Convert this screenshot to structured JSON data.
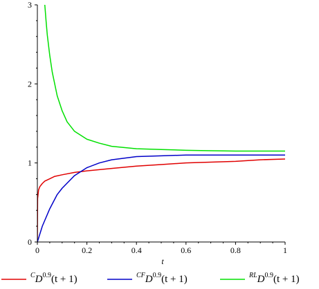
{
  "chart_data": {
    "type": "line",
    "xlabel": "t",
    "ylabel": "",
    "xlim": [
      0,
      1
    ],
    "ylim": [
      0,
      3
    ],
    "x_ticks": [
      {
        "value": 0,
        "label": "0"
      },
      {
        "value": 0.2,
        "label": "0.2"
      },
      {
        "value": 0.4,
        "label": "0.4"
      },
      {
        "value": 0.6,
        "label": "0.6"
      },
      {
        "value": 0.8,
        "label": "0.8"
      },
      {
        "value": 1,
        "label": "1"
      }
    ],
    "y_ticks": [
      {
        "value": 0,
        "label": "0"
      },
      {
        "value": 1,
        "label": "1"
      },
      {
        "value": 2,
        "label": "2"
      },
      {
        "value": 3,
        "label": "3"
      }
    ],
    "grid": false,
    "legend_position": "bottom",
    "series": [
      {
        "name": "^C D^0.9(t+1)",
        "legend_parts": {
          "sup": "C",
          "base": "D",
          "exp": "0.9",
          "arg": "(t + 1)"
        },
        "color": "#e00000",
        "x": [
          0,
          0.001,
          0.005,
          0.01,
          0.02,
          0.03,
          0.05,
          0.07,
          0.1,
          0.15,
          0.2,
          0.3,
          0.4,
          0.5,
          0.6,
          0.7,
          0.8,
          0.9,
          1.0
        ],
        "y": [
          0,
          0.55,
          0.66,
          0.7,
          0.74,
          0.77,
          0.8,
          0.83,
          0.85,
          0.88,
          0.9,
          0.93,
          0.96,
          0.98,
          1.0,
          1.01,
          1.02,
          1.04,
          1.05
        ]
      },
      {
        "name": "^CF D^0.9(t+1)",
        "legend_parts": {
          "sup": "CF",
          "base": "D",
          "exp": "0.9",
          "arg": "(t + 1)"
        },
        "color": "#0000c8",
        "x": [
          0,
          0.02,
          0.05,
          0.08,
          0.1,
          0.15,
          0.2,
          0.25,
          0.3,
          0.4,
          0.5,
          0.6,
          0.7,
          0.8,
          0.9,
          1.0
        ],
        "y": [
          0,
          0.2,
          0.42,
          0.6,
          0.68,
          0.84,
          0.94,
          1.0,
          1.04,
          1.08,
          1.09,
          1.1,
          1.1,
          1.1,
          1.1,
          1.1
        ]
      },
      {
        "name": "^RL D^0.9(t+1)",
        "legend_parts": {
          "sup": "RL",
          "base": "D",
          "exp": "0.9",
          "arg": "(t + 1)"
        },
        "color": "#00e000",
        "x": [
          0.03,
          0.035,
          0.04,
          0.05,
          0.06,
          0.08,
          0.1,
          0.12,
          0.15,
          0.2,
          0.25,
          0.3,
          0.4,
          0.5,
          0.6,
          0.7,
          0.8,
          0.9,
          1.0
        ],
        "y": [
          3.0,
          2.8,
          2.62,
          2.36,
          2.15,
          1.85,
          1.66,
          1.52,
          1.4,
          1.3,
          1.25,
          1.21,
          1.18,
          1.17,
          1.16,
          1.155,
          1.15,
          1.15,
          1.15
        ]
      }
    ]
  }
}
